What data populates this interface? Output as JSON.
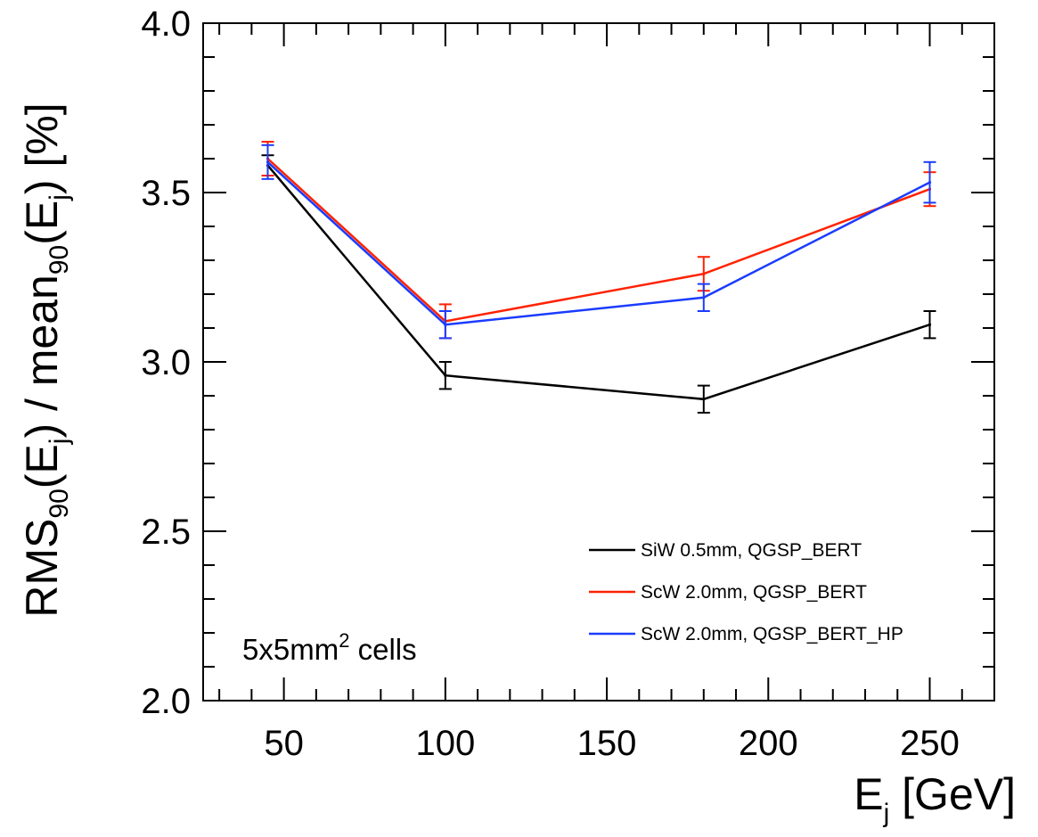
{
  "chart_data": {
    "type": "line",
    "title": "",
    "xlabel": {
      "main": "E",
      "sub": "j",
      "rest": " [GeV]"
    },
    "ylabel": {
      "parts": [
        {
          "t": "RMS",
          "sub": false
        },
        {
          "t": "90",
          "sub": true
        },
        {
          "t": "(E",
          "sub": false
        },
        {
          "t": "j",
          "sub": true
        },
        {
          "t": ") / mean",
          "sub": false
        },
        {
          "t": "90",
          "sub": true
        },
        {
          "t": "(E",
          "sub": false
        },
        {
          "t": "j",
          "sub": true
        },
        {
          "t": ") [%]",
          "sub": false
        }
      ]
    },
    "xlim": [
      25,
      270
    ],
    "ylim": [
      2.0,
      4.0
    ],
    "x_ticks": [
      50,
      100,
      150,
      200,
      250
    ],
    "x_tick_labels": [
      "50",
      "100",
      "150",
      "200",
      "250"
    ],
    "y_ticks": [
      2.0,
      2.5,
      3.0,
      3.5,
      4.0
    ],
    "y_tick_labels": [
      "2.0",
      "2.5",
      "3.0",
      "3.5",
      "4.0"
    ],
    "x_minor_step": 10,
    "y_minor_step": 0.1,
    "grid": false,
    "legend_position": "bottom-right",
    "series": [
      {
        "name": "SiW 0.5mm, QGSP_BERT",
        "color": "#000000",
        "x": [
          45,
          100,
          180,
          250
        ],
        "y": [
          3.58,
          2.96,
          2.89,
          3.11
        ],
        "err": [
          0.03,
          0.04,
          0.04,
          0.04
        ]
      },
      {
        "name": "ScW 2.0mm, QGSP_BERT",
        "color": "#ff2200",
        "x": [
          45,
          100,
          180,
          250
        ],
        "y": [
          3.6,
          3.12,
          3.26,
          3.51
        ],
        "err": [
          0.05,
          0.05,
          0.05,
          0.05
        ]
      },
      {
        "name": "ScW 2.0mm, QGSP_BERT_HP",
        "color": "#1a3cff",
        "x": [
          45,
          100,
          180,
          250
        ],
        "y": [
          3.59,
          3.11,
          3.19,
          3.53
        ],
        "err": [
          0.05,
          0.04,
          0.04,
          0.06
        ]
      }
    ],
    "annotation": {
      "main": "5x5mm",
      "sup": "2",
      "rest": " cells"
    }
  }
}
